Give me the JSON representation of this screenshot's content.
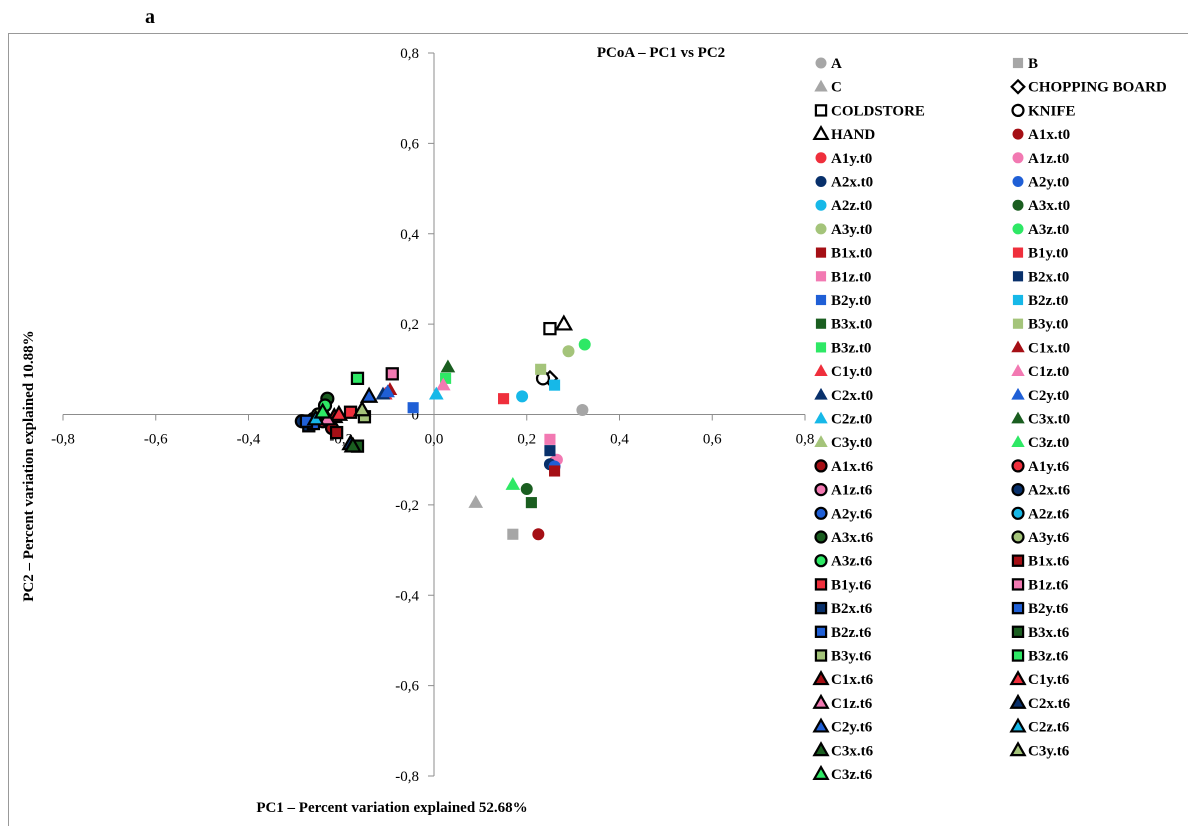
{
  "panel_label": "a",
  "chart_data": {
    "type": "scatter",
    "title": "PCoA – PC1 vs PC2",
    "xlabel": "PC1 – Percent variation explained 52.68%",
    "ylabel": "PC2 – Percent variation explained 10.88%",
    "xlim": [
      -0.8,
      0.8
    ],
    "ylim": [
      -0.8,
      0.8
    ],
    "x_ticks": [
      "-0,8",
      "-0,6",
      "-0,4",
      "-0,2",
      "0,0",
      "0,2",
      "0,4",
      "0,6",
      "0,8"
    ],
    "y_ticks": [
      "0,8",
      "0,6",
      "0,4",
      "0,2",
      "0",
      "-0,2",
      "-0,4",
      "-0,6",
      "-0,8"
    ],
    "x_tick_values": [
      -0.8,
      -0.6,
      -0.4,
      -0.2,
      0.0,
      0.2,
      0.4,
      0.6,
      0.8
    ],
    "y_tick_values": [
      0.8,
      0.6,
      0.4,
      0.2,
      0,
      -0.2,
      -0.4,
      -0.6,
      -0.8
    ],
    "grid": false,
    "legend_position": "right",
    "series": [
      {
        "name": "A",
        "marker": "circle",
        "color": "#a6a6a6",
        "outline": false,
        "points": [
          [
            0.32,
            0.01
          ]
        ]
      },
      {
        "name": "B",
        "marker": "square",
        "color": "#a6a6a6",
        "outline": false,
        "points": [
          [
            0.17,
            -0.265
          ]
        ]
      },
      {
        "name": "C",
        "marker": "triangle",
        "color": "#a6a6a6",
        "outline": false,
        "points": [
          [
            0.09,
            -0.195
          ]
        ]
      },
      {
        "name": "CHOPPING BOARD",
        "marker": "diamond",
        "color": "#ffffff",
        "outline": true,
        "points": [
          [
            0.25,
            0.08
          ]
        ]
      },
      {
        "name": "COLDSTORE",
        "marker": "square",
        "color": "#ffffff",
        "outline": true,
        "points": [
          [
            0.25,
            0.19
          ]
        ]
      },
      {
        "name": "KNIFE",
        "marker": "circle",
        "color": "#ffffff",
        "outline": true,
        "points": [
          [
            0.235,
            0.08
          ]
        ]
      },
      {
        "name": "HAND",
        "marker": "triangle",
        "color": "#ffffff",
        "outline": true,
        "points": [
          [
            0.28,
            0.2
          ]
        ]
      },
      {
        "name": "A1x.t0",
        "marker": "circle",
        "color": "#a50f15",
        "outline": false,
        "points": [
          [
            0.225,
            -0.265
          ]
        ]
      },
      {
        "name": "A1y.t0",
        "marker": "circle",
        "color": "#ef2f3c",
        "outline": false,
        "points": [
          [
            0.26,
            -0.105
          ]
        ]
      },
      {
        "name": "A1z.t0",
        "marker": "circle",
        "color": "#f279b2",
        "outline": false,
        "points": [
          [
            0.265,
            -0.1
          ]
        ]
      },
      {
        "name": "A2x.t0",
        "marker": "circle",
        "color": "#08306b",
        "outline": false,
        "points": [
          [
            0.25,
            -0.11
          ]
        ]
      },
      {
        "name": "A2y.t0",
        "marker": "circle",
        "color": "#1f5fd6",
        "outline": false,
        "points": [
          [
            0.26,
            -0.115
          ]
        ]
      },
      {
        "name": "A2z.t0",
        "marker": "circle",
        "color": "#16b8e8",
        "outline": false,
        "points": [
          [
            0.19,
            0.04
          ]
        ]
      },
      {
        "name": "A3x.t0",
        "marker": "circle",
        "color": "#1a5e20",
        "outline": false,
        "points": [
          [
            0.2,
            -0.165
          ]
        ]
      },
      {
        "name": "A3y.t0",
        "marker": "circle",
        "color": "#a4c47a",
        "outline": false,
        "points": [
          [
            0.29,
            0.14
          ]
        ]
      },
      {
        "name": "A3z.t0",
        "marker": "circle",
        "color": "#2ee865",
        "outline": false,
        "points": [
          [
            0.325,
            0.155
          ]
        ]
      },
      {
        "name": "B1x.t0",
        "marker": "square",
        "color": "#a50f15",
        "outline": false,
        "points": [
          [
            0.26,
            -0.125
          ]
        ]
      },
      {
        "name": "B1y.t0",
        "marker": "square",
        "color": "#ef2f3c",
        "outline": false,
        "points": [
          [
            0.15,
            0.035
          ]
        ]
      },
      {
        "name": "B1z.t0",
        "marker": "square",
        "color": "#f279b2",
        "outline": false,
        "points": [
          [
            0.25,
            -0.055
          ]
        ]
      },
      {
        "name": "B2x.t0",
        "marker": "square",
        "color": "#08306b",
        "outline": false,
        "points": [
          [
            0.25,
            -0.08
          ]
        ]
      },
      {
        "name": "B2y.t0",
        "marker": "square",
        "color": "#1f5fd6",
        "outline": false,
        "points": [
          [
            -0.045,
            0.015
          ]
        ]
      },
      {
        "name": "B2z.t0",
        "marker": "square",
        "color": "#16b8e8",
        "outline": false,
        "points": [
          [
            0.26,
            0.065
          ]
        ]
      },
      {
        "name": "B3x.t0",
        "marker": "square",
        "color": "#1a5e20",
        "outline": false,
        "points": [
          [
            0.21,
            -0.195
          ]
        ]
      },
      {
        "name": "B3y.t0",
        "marker": "square",
        "color": "#a4c47a",
        "outline": false,
        "points": [
          [
            0.23,
            0.1
          ]
        ]
      },
      {
        "name": "B3z.t0",
        "marker": "square",
        "color": "#2ee865",
        "outline": false,
        "points": [
          [
            0.025,
            0.08
          ]
        ]
      },
      {
        "name": "C1x.t0",
        "marker": "triangle",
        "color": "#a50f15",
        "outline": false,
        "points": [
          [
            -0.095,
            0.055
          ]
        ]
      },
      {
        "name": "C1y.t0",
        "marker": "triangle",
        "color": "#ef2f3c",
        "outline": false,
        "points": [
          [
            -0.105,
            0.045
          ]
        ]
      },
      {
        "name": "C1z.t0",
        "marker": "triangle",
        "color": "#f279b2",
        "outline": false,
        "points": [
          [
            0.02,
            0.065
          ]
        ]
      },
      {
        "name": "C2x.t0",
        "marker": "triangle",
        "color": "#08306b",
        "outline": false,
        "points": [
          [
            -0.11,
            0.045
          ]
        ]
      },
      {
        "name": "C2y.t0",
        "marker": "triangle",
        "color": "#1f5fd6",
        "outline": false,
        "points": [
          [
            -0.1,
            0.05
          ]
        ]
      },
      {
        "name": "C2z.t0",
        "marker": "triangle",
        "color": "#16b8e8",
        "outline": false,
        "points": [
          [
            0.005,
            0.045
          ]
        ]
      },
      {
        "name": "C3x.t0",
        "marker": "triangle",
        "color": "#1a5e20",
        "outline": false,
        "points": [
          [
            0.03,
            0.105
          ]
        ]
      },
      {
        "name": "C3y.t0",
        "marker": "triangle",
        "color": "#a4c47a",
        "outline": false,
        "points": [
          [
            -0.235,
            0.005
          ]
        ]
      },
      {
        "name": "C3z.t0",
        "marker": "triangle",
        "color": "#2ee865",
        "outline": false,
        "points": [
          [
            0.17,
            -0.155
          ]
        ]
      },
      {
        "name": "A1x.t6",
        "marker": "circle",
        "color": "#a50f15",
        "outline": true,
        "points": [
          [
            -0.22,
            -0.03
          ]
        ]
      },
      {
        "name": "A1y.t6",
        "marker": "circle",
        "color": "#ef2f3c",
        "outline": true,
        "points": [
          [
            -0.24,
            -0.015
          ]
        ]
      },
      {
        "name": "A1z.t6",
        "marker": "circle",
        "color": "#f279b2",
        "outline": true,
        "points": [
          [
            -0.235,
            -0.01
          ]
        ]
      },
      {
        "name": "A2x.t6",
        "marker": "circle",
        "color": "#08306b",
        "outline": true,
        "points": [
          [
            -0.285,
            -0.015
          ]
        ]
      },
      {
        "name": "A2y.t6",
        "marker": "circle",
        "color": "#1f5fd6",
        "outline": true,
        "points": [
          [
            -0.27,
            -0.02
          ]
        ]
      },
      {
        "name": "A2z.t6",
        "marker": "circle",
        "color": "#16b8e8",
        "outline": true,
        "points": [
          [
            -0.26,
            -0.01
          ]
        ]
      },
      {
        "name": "A3x.t6",
        "marker": "circle",
        "color": "#1a5e20",
        "outline": true,
        "points": [
          [
            -0.23,
            0.035
          ]
        ]
      },
      {
        "name": "A3y.t6",
        "marker": "circle",
        "color": "#a4c47a",
        "outline": true,
        "points": [
          [
            -0.25,
            0.0
          ]
        ]
      },
      {
        "name": "A3z.t6",
        "marker": "circle",
        "color": "#2ee865",
        "outline": true,
        "points": [
          [
            -0.235,
            0.02
          ]
        ]
      },
      {
        "name": "B1x.t6",
        "marker": "square",
        "color": "#a50f15",
        "outline": true,
        "points": [
          [
            -0.21,
            -0.04
          ]
        ]
      },
      {
        "name": "B1y.t6",
        "marker": "square",
        "color": "#ef2f3c",
        "outline": true,
        "points": [
          [
            -0.18,
            0.005
          ]
        ]
      },
      {
        "name": "B1z.t6",
        "marker": "square",
        "color": "#f279b2",
        "outline": true,
        "points": [
          [
            -0.09,
            0.09
          ]
        ]
      },
      {
        "name": "B2x.t6",
        "marker": "square",
        "color": "#08306b",
        "outline": true,
        "points": [
          [
            -0.27,
            -0.025
          ]
        ]
      },
      {
        "name": "B2y.t6",
        "marker": "square",
        "color": "#1f5fd6",
        "outline": true,
        "points": [
          [
            -0.26,
            -0.02
          ]
        ]
      },
      {
        "name": "B2z.t6",
        "marker": "square",
        "color": "#1f5fd6",
        "outline": true,
        "points": [
          [
            -0.275,
            -0.015
          ]
        ]
      },
      {
        "name": "B3x.t6",
        "marker": "square",
        "color": "#1a5e20",
        "outline": true,
        "points": [
          [
            -0.165,
            -0.07
          ]
        ]
      },
      {
        "name": "B3y.t6",
        "marker": "square",
        "color": "#a4c47a",
        "outline": true,
        "points": [
          [
            -0.15,
            -0.005
          ]
        ]
      },
      {
        "name": "B3z.t6",
        "marker": "square",
        "color": "#2ee865",
        "outline": true,
        "points": [
          [
            -0.165,
            0.08
          ]
        ]
      },
      {
        "name": "C1x.t6",
        "marker": "triangle",
        "color": "#a50f15",
        "outline": true,
        "points": [
          [
            -0.215,
            -0.005
          ]
        ]
      },
      {
        "name": "C1y.t6",
        "marker": "triangle",
        "color": "#ef2f3c",
        "outline": true,
        "points": [
          [
            -0.205,
            0.0
          ]
        ]
      },
      {
        "name": "C1z.t6",
        "marker": "triangle",
        "color": "#f279b2",
        "outline": true,
        "points": [
          [
            -0.23,
            -0.01
          ]
        ]
      },
      {
        "name": "C2x.t6",
        "marker": "triangle",
        "color": "#08306b",
        "outline": true,
        "points": [
          [
            -0.18,
            -0.065
          ]
        ]
      },
      {
        "name": "C2y.t6",
        "marker": "triangle",
        "color": "#1f5fd6",
        "outline": true,
        "points": [
          [
            -0.14,
            0.04
          ]
        ]
      },
      {
        "name": "C2z.t6",
        "marker": "triangle",
        "color": "#16b8e8",
        "outline": true,
        "points": [
          [
            -0.255,
            -0.01
          ]
        ]
      },
      {
        "name": "C3x.t6",
        "marker": "triangle",
        "color": "#1a5e20",
        "outline": true,
        "points": [
          [
            -0.175,
            -0.07
          ]
        ]
      },
      {
        "name": "C3y.t6",
        "marker": "triangle",
        "color": "#a4c47a",
        "outline": true,
        "points": [
          [
            -0.155,
            0.01
          ]
        ]
      },
      {
        "name": "C3z.t6",
        "marker": "triangle",
        "color": "#2ee865",
        "outline": true,
        "points": [
          [
            -0.24,
            0.005
          ]
        ]
      }
    ]
  }
}
